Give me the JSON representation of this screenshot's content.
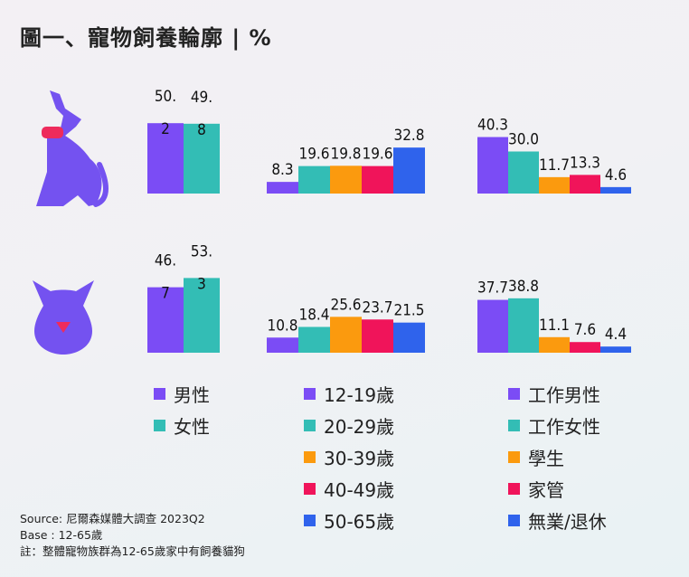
{
  "title": "圖一、寵物飼養輪廓 | %",
  "colors": {
    "purple": "#7b4cf5",
    "teal": "#33bdb5",
    "orange": "#fb9a0e",
    "red": "#f0145a",
    "blue": "#2f63ec",
    "pet_icon": "#7452f0",
    "collar": "#ee2b5c"
  },
  "icons": {
    "dog": "dog-icon",
    "cat": "cat-icon"
  },
  "chart_data": [
    {
      "type": "bar",
      "group": "gender",
      "pet": "dog",
      "categories": [
        "男性",
        "女性"
      ],
      "values": [
        50.2,
        49.8
      ],
      "labels": [
        "50.\n2",
        "49.\n8"
      ]
    },
    {
      "type": "bar",
      "group": "age",
      "pet": "dog",
      "categories": [
        "12-19歲",
        "20-29歲",
        "30-39歲",
        "40-49歲",
        "50-65歲"
      ],
      "values": [
        8.3,
        19.6,
        19.8,
        19.6,
        32.8
      ],
      "labels": [
        "8.3",
        "19.6",
        "19.8",
        "19.6",
        "32.8"
      ]
    },
    {
      "type": "bar",
      "group": "occupation",
      "pet": "dog",
      "categories": [
        "工作男性",
        "工作女性",
        "學生",
        "家管",
        "無業/退休"
      ],
      "values": [
        40.3,
        30.0,
        11.7,
        13.3,
        4.6
      ],
      "labels": [
        "40.3",
        "30.0",
        "11.7",
        "13.3",
        "4.6"
      ]
    },
    {
      "type": "bar",
      "group": "gender",
      "pet": "cat",
      "categories": [
        "男性",
        "女性"
      ],
      "values": [
        46.7,
        53.3
      ],
      "labels": [
        "46.\n7",
        "53.\n3"
      ]
    },
    {
      "type": "bar",
      "group": "age",
      "pet": "cat",
      "categories": [
        "12-19歲",
        "20-29歲",
        "30-39歲",
        "40-49歲",
        "50-65歲"
      ],
      "values": [
        10.8,
        18.4,
        25.6,
        23.7,
        21.5
      ],
      "labels": [
        "10.8",
        "18.4",
        "25.6",
        "23.7",
        "21.5"
      ]
    },
    {
      "type": "bar",
      "group": "occupation",
      "pet": "cat",
      "categories": [
        "工作男性",
        "工作女性",
        "學生",
        "家管",
        "無業/退休"
      ],
      "values": [
        37.7,
        38.8,
        11.1,
        7.6,
        4.4
      ],
      "labels": [
        "37.7",
        "38.8",
        "11.1",
        "7.6",
        "4.4"
      ]
    }
  ],
  "legends": {
    "gender": [
      "男性",
      "女性"
    ],
    "age": [
      "12-19歲",
      "20-29歲",
      "30-39歲",
      "40-49歲",
      "50-65歲"
    ],
    "occupation": [
      "工作男性",
      "工作女性",
      "學生",
      "家管",
      "無業/退休"
    ]
  },
  "notes": {
    "source": "Source: 尼爾森媒體大調查 2023Q2",
    "base": "Base : 12-65歲",
    "note": "註：整體寵物族群為12-65歲家中有飼養貓狗"
  }
}
